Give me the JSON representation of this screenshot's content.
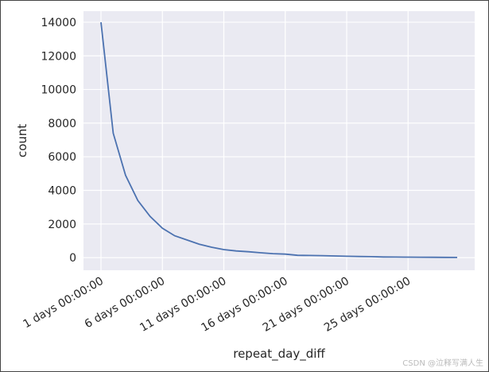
{
  "chart_data": {
    "type": "line",
    "x_label": "repeat_day_diff",
    "y_label": "count",
    "categories": [
      "1 days 00:00:00",
      null,
      null,
      null,
      null,
      "6 days 00:00:00",
      null,
      null,
      null,
      null,
      "11 days 00:00:00",
      null,
      null,
      null,
      null,
      "16 days 00:00:00",
      null,
      null,
      null,
      null,
      "21 days 00:00:00",
      null,
      null,
      null,
      null,
      "25 days 00:00:00",
      null,
      null,
      null,
      null
    ],
    "series": [
      {
        "name": "count",
        "color": "#4c72b0",
        "values": [
          14000,
          7400,
          4900,
          3400,
          2450,
          1750,
          1300,
          1050,
          800,
          620,
          480,
          400,
          350,
          290,
          240,
          210,
          140,
          130,
          120,
          100,
          80,
          70,
          60,
          40,
          35,
          30,
          25,
          20,
          15,
          10
        ]
      }
    ],
    "ylim": [
      -750,
      14660
    ],
    "yticks": [
      0,
      2000,
      4000,
      6000,
      8000,
      10000,
      12000,
      14000
    ],
    "grid": true
  },
  "watermark": "CSDN @泣释写满人生"
}
